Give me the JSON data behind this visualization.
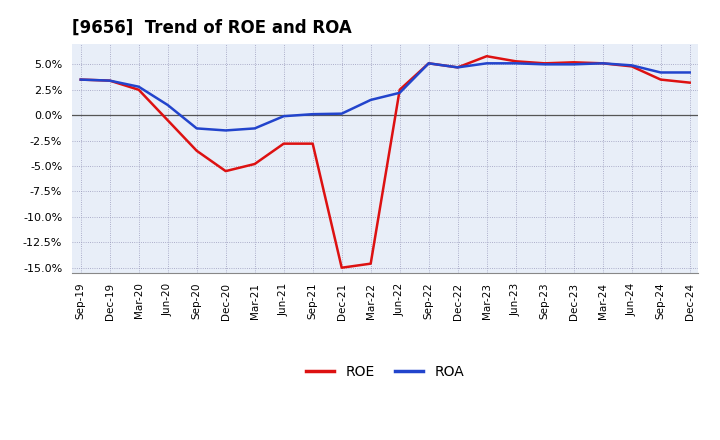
{
  "title": "[9656]  Trend of ROE and ROA",
  "x_labels": [
    "Sep-19",
    "Dec-19",
    "Mar-20",
    "Jun-20",
    "Sep-20",
    "Dec-20",
    "Mar-21",
    "Jun-21",
    "Sep-21",
    "Dec-21",
    "Mar-22",
    "Jun-22",
    "Sep-22",
    "Dec-22",
    "Mar-23",
    "Jun-23",
    "Sep-23",
    "Dec-23",
    "Mar-24",
    "Jun-24",
    "Sep-24",
    "Dec-24"
  ],
  "roe": [
    3.5,
    3.4,
    2.5,
    -0.5,
    -3.5,
    -5.5,
    -4.8,
    -2.8,
    -2.8,
    -15.0,
    -14.6,
    2.5,
    5.1,
    4.7,
    5.8,
    5.3,
    5.1,
    5.2,
    5.1,
    4.8,
    3.5,
    3.2
  ],
  "roa": [
    3.5,
    3.4,
    2.8,
    1.0,
    -1.3,
    -1.5,
    -1.3,
    -0.1,
    0.1,
    0.15,
    1.5,
    2.2,
    5.1,
    4.7,
    5.1,
    5.1,
    5.0,
    5.0,
    5.1,
    4.9,
    4.2,
    4.2
  ],
  "roe_color": "#dd1111",
  "roa_color": "#2244cc",
  "ylim": [
    -15.5,
    7.0
  ],
  "yticks": [
    -15.0,
    -12.5,
    -10.0,
    -7.5,
    -5.0,
    -2.5,
    0.0,
    2.5,
    5.0
  ],
  "background_color": "#ffffff",
  "plot_bg_color": "#e8eef8",
  "grid_color": "#9999bb",
  "title_fontsize": 12,
  "line_width": 1.8
}
